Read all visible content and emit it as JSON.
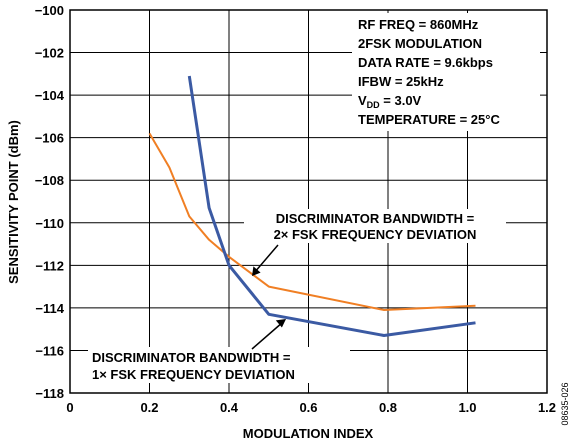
{
  "chart_data": {
    "type": "line",
    "xlabel": "MODULATION INDEX",
    "ylabel": "SENSITIVITY POINT (dBm)",
    "xlim": [
      0,
      1.2
    ],
    "ylim": [
      -118,
      -100
    ],
    "x_ticks": [
      "0",
      "0.2",
      "0.4",
      "0.6",
      "0.8",
      "1.0",
      "1.2"
    ],
    "y_ticks": [
      "−100",
      "−102",
      "−104",
      "−106",
      "−108",
      "−110",
      "−112",
      "−114",
      "−116",
      "−118"
    ],
    "grid": true,
    "series": [
      {
        "name": "DISCRIMINATOR BANDWIDTH = 2× FSK FREQUENCY DEVIATION",
        "color": "#f07f24",
        "points": [
          [
            0.2,
            -105.8
          ],
          [
            0.25,
            -107.4
          ],
          [
            0.3,
            -109.7
          ],
          [
            0.35,
            -110.8
          ],
          [
            0.4,
            -111.6
          ],
          [
            0.5,
            -113.0
          ],
          [
            0.79,
            -114.1
          ],
          [
            1.02,
            -113.9
          ]
        ]
      },
      {
        "name": "DISCRIMINATOR BANDWIDTH = 1× FSK FREQUENCY DEVIATION",
        "color": "#3b5aa3",
        "points": [
          [
            0.3,
            -103.1
          ],
          [
            0.35,
            -109.3
          ],
          [
            0.4,
            -112.0
          ],
          [
            0.5,
            -114.3
          ],
          [
            0.79,
            -115.3
          ],
          [
            1.02,
            -114.7
          ]
        ]
      }
    ],
    "annotations": {
      "upper": [
        "DISCRIMINATOR BANDWIDTH =",
        "2× FSK FREQUENCY DEVIATION"
      ],
      "lower": [
        "DISCRIMINATOR BANDWIDTH =",
        "1× FSK FREQUENCY DEVIATION"
      ]
    },
    "conditions": {
      "rf_freq": "RF FREQ = 860MHz",
      "modulation": "2FSK MODULATION",
      "data_rate": "DATA RATE = 9.6kbps",
      "ifbw": "IFBW = 25kHz",
      "vdd_prefix": "V",
      "vdd_sub": "DD",
      "vdd_value": " = 3.0V",
      "temperature": "TEMPERATURE = 25°C"
    },
    "figure_id": "08635-026"
  }
}
